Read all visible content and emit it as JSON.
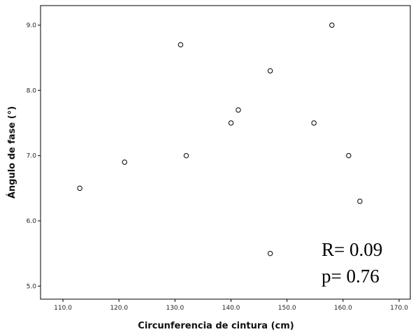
{
  "chart_data": {
    "type": "scatter",
    "title": "",
    "xlabel": "Circunferencia de cintura (cm)",
    "ylabel": "Ángulo de fase (°)",
    "xlim": [
      106,
      172
    ],
    "ylim": [
      4.8,
      9.3
    ],
    "x_ticks": [
      110.0,
      120.0,
      130.0,
      140.0,
      150.0,
      160.0,
      170.0
    ],
    "x_tick_labels": [
      "110.0",
      "120.0",
      "130.0",
      "140.0",
      "150.0",
      "160.0",
      "170.0"
    ],
    "y_ticks": [
      5.0,
      6.0,
      7.0,
      8.0,
      9.0
    ],
    "y_tick_labels": [
      "5.0",
      "6.0",
      "7.0",
      "8.0",
      "9.0"
    ],
    "grid": false,
    "marker": "open-circle",
    "points": [
      {
        "x": 113.0,
        "y": 6.5
      },
      {
        "x": 121.0,
        "y": 6.9
      },
      {
        "x": 131.0,
        "y": 8.7
      },
      {
        "x": 132.0,
        "y": 7.0
      },
      {
        "x": 140.0,
        "y": 7.5
      },
      {
        "x": 141.3,
        "y": 7.7
      },
      {
        "x": 147.0,
        "y": 8.3
      },
      {
        "x": 147.0,
        "y": 5.5
      },
      {
        "x": 154.8,
        "y": 7.5
      },
      {
        "x": 158.0,
        "y": 9.0
      },
      {
        "x": 161.0,
        "y": 7.0
      },
      {
        "x": 163.0,
        "y": 6.3
      }
    ],
    "annotations": [
      "R= 0.09",
      "p= 0.76"
    ]
  }
}
